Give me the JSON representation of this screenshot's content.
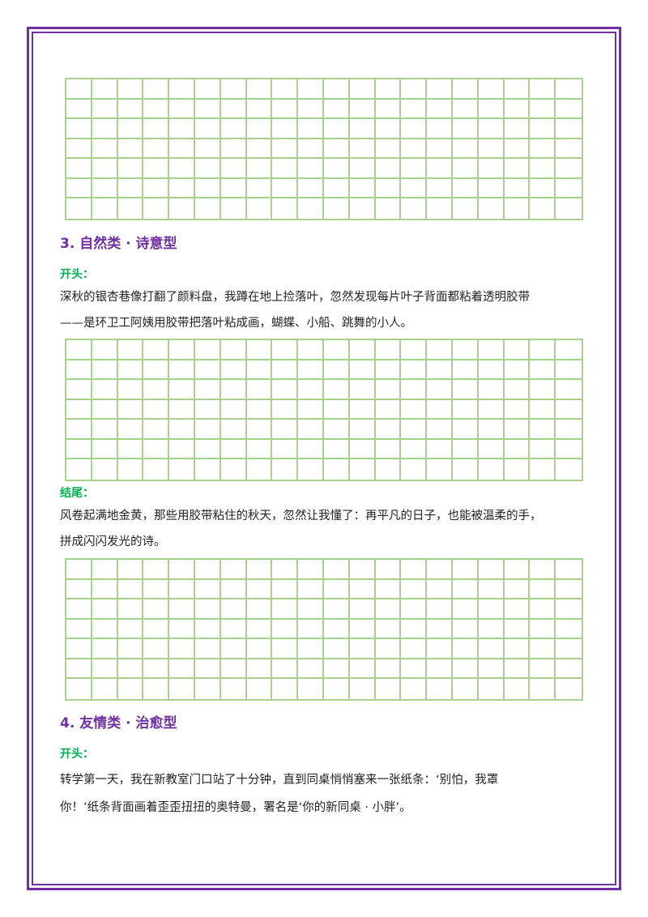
{
  "section3": {
    "heading": "3.  自然类 · 诗意型",
    "opening_label": "开头：",
    "opening_line1": "深秋的银杏巷像打翻了颜料盘，我蹲在地上捡落叶，忽然发现每片叶子背面都粘着透明胶带",
    "opening_line2": "——是环卫工阿姨用胶带把落叶粘成画，蝴蝶、小船、跳舞的小人。",
    "ending_label": "结尾：",
    "ending_line1": "风卷起满地金黄，那些用胶带粘住的秋天，忽然让我懂了：再平凡的日子，也能被温柔的手，",
    "ending_line2": "拼成闪闪发光的诗。"
  },
  "section4": {
    "heading": "4.  友情类 · 治愈型",
    "opening_label": "开头：",
    "opening_line1": "转学第一天，我在新教室门口站了十分钟，直到同桌悄悄塞来一张纸条：‘别怕，我罩",
    "opening_line2": "你！’纸条背面画着歪歪扭扭的奥特曼，署名是‘你的新同桌 · 小胖’。"
  },
  "writing_grid": {
    "columns": 20,
    "rows": 7
  },
  "colors": {
    "frame": "#7030a0",
    "heading": "#7030a0",
    "label": "#00b050",
    "grid": "#a9d18e"
  }
}
